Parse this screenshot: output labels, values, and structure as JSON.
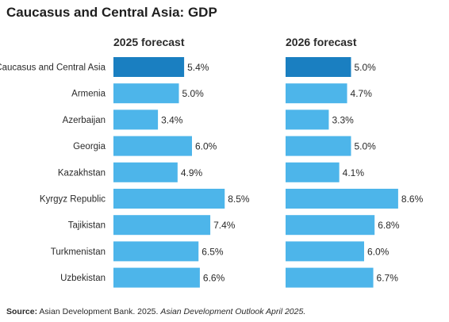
{
  "chart_data": {
    "type": "bar",
    "title": "Caucasus and Central Asia: GDP",
    "orientation": "horizontal",
    "categories": [
      "Caucasus and Central Asia",
      "Armenia",
      "Azerbaijan",
      "Georgia",
      "Kazakhstan",
      "Kyrgyz Republic",
      "Tajikistan",
      "Turkmenistan",
      "Uzbekistan"
    ],
    "series": [
      {
        "name": "2025 forecast",
        "values": [
          5.4,
          5.0,
          3.4,
          6.0,
          4.9,
          8.5,
          7.4,
          6.5,
          6.6
        ],
        "labels": [
          "5.4%",
          "5.0%",
          "3.4%",
          "6.0%",
          "4.9%",
          "8.5%",
          "7.4%",
          "6.5%",
          "6.6%"
        ]
      },
      {
        "name": "2026 forecast",
        "values": [
          5.0,
          4.7,
          3.3,
          5.0,
          4.1,
          8.6,
          6.8,
          6.0,
          6.7
        ],
        "labels": [
          "5.0%",
          "4.7%",
          "3.3%",
          "5.0%",
          "4.1%",
          "8.6%",
          "6.8%",
          "6.0%",
          "6.7%"
        ]
      }
    ],
    "highlight_category": "Caucasus and Central Asia",
    "colors": {
      "bar": "#4db5ea",
      "highlight": "#1a7fc1"
    },
    "grid": false,
    "x_axis_visible": false
  },
  "footer": {
    "source_label": "Source:",
    "source_text": " Asian Development Bank. 2025. ",
    "source_italic": "Asian Development Outlook April 2025."
  }
}
